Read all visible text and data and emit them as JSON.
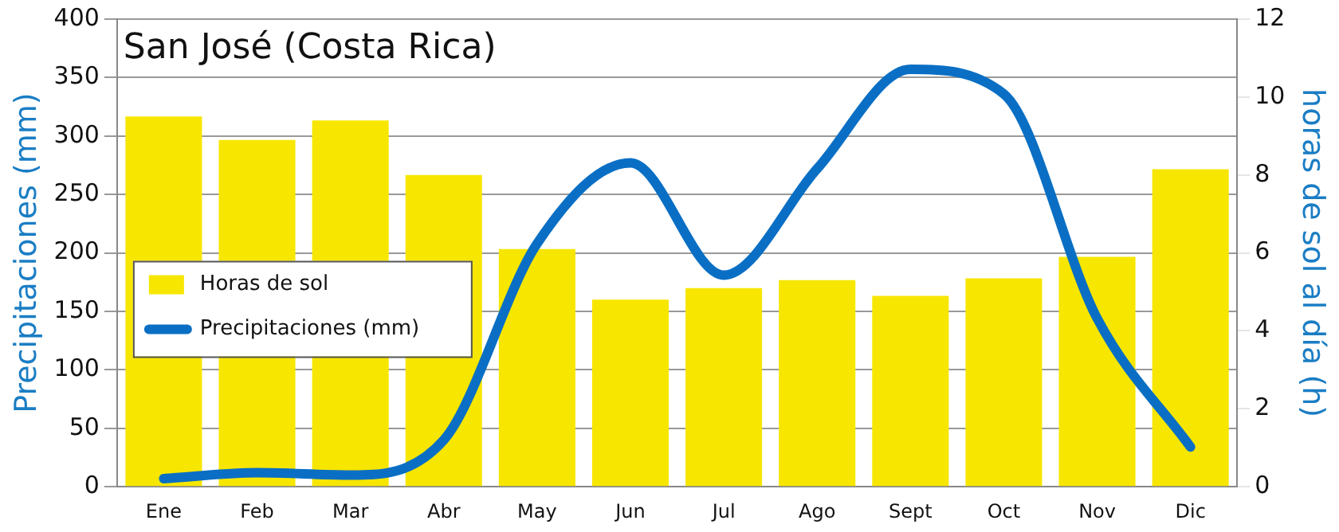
{
  "chart_data": {
    "type": "bar",
    "title": "San José (Costa Rica)",
    "ylabel": "Precipitaciones (mm)",
    "y2label": "horas de sol al día (h)",
    "categories": [
      "Ene",
      "Feb",
      "Mar",
      "Abr",
      "May",
      "Jun",
      "Jul",
      "Ago",
      "Sept",
      "Oct",
      "Nov",
      "Dic"
    ],
    "series": [
      {
        "name": "Horas de sol",
        "axis": "y2",
        "color": "#f7e600",
        "values": [
          9.5,
          8.9,
          9.4,
          8.0,
          6.1,
          4.8,
          5.1,
          5.3,
          4.9,
          5.35,
          5.9,
          8.15
        ]
      },
      {
        "name": "Precipitaciones (mm)",
        "type": "line",
        "color": "#0a6fc4",
        "values": [
          7,
          12,
          10,
          40,
          208,
          277,
          181,
          272,
          357,
          336,
          144,
          34
        ]
      }
    ],
    "ylim": [
      0,
      400
    ],
    "yticks": [
      0,
      50,
      100,
      150,
      200,
      250,
      300,
      350,
      400
    ],
    "y2lim": [
      0,
      12
    ],
    "y2ticks": [
      0,
      2,
      4,
      6,
      8,
      10,
      12
    ],
    "grid": "y",
    "legend": "left",
    "marker": "none",
    "line_style": "solid"
  }
}
